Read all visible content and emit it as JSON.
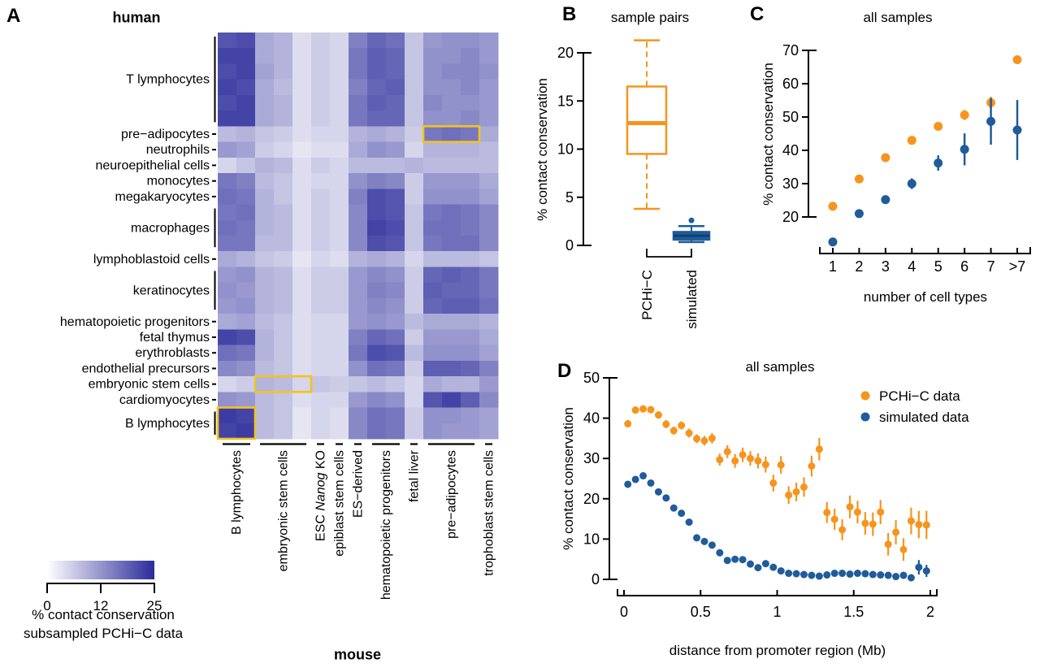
{
  "colors": {
    "orange": "#F7941E",
    "blue": "#1F5C99",
    "blue_dark": "#123F6E",
    "heat_max": "#2B2B9B",
    "highlight": "#F2C41D",
    "black": "#000000"
  },
  "chart_data": {
    "A": {
      "letter": "A",
      "type": "heatmap",
      "rows_title": "human",
      "cols_title": "mouse",
      "heat_scale_max": 25,
      "row_groups": [
        {
          "label": "T lymphocytes",
          "rows": 6
        },
        {
          "label": "pre−adipocytes",
          "rows": 1
        },
        {
          "label": "neutrophils",
          "rows": 1
        },
        {
          "label": "neuroepithelial cells",
          "rows": 1
        },
        {
          "label": "monocytes",
          "rows": 1
        },
        {
          "label": "megakaryocytes",
          "rows": 1
        },
        {
          "label": "macrophages",
          "rows": 3
        },
        {
          "label": "lymphoblastoid cells",
          "rows": 1
        },
        {
          "label": "keratinocytes",
          "rows": 3
        },
        {
          "label": "hematopoietic progenitors",
          "rows": 1
        },
        {
          "label": "fetal thymus",
          "rows": 1
        },
        {
          "label": "erythroblasts",
          "rows": 1
        },
        {
          "label": "endothelial precursors",
          "rows": 1
        },
        {
          "label": "embryonic stem cells",
          "rows": 1
        },
        {
          "label": "cardiomyocytes",
          "rows": 1
        },
        {
          "label": "B lymphocytes",
          "rows": 2
        }
      ],
      "col_groups": [
        {
          "label": "B lymphocytes",
          "cols": 2
        },
        {
          "label": "embryonic stem cells",
          "cols": 3
        },
        {
          "label": "ESC Nanog KO",
          "cols": 1,
          "italic": "Nanog"
        },
        {
          "label": "epiblast stem cells",
          "cols": 1
        },
        {
          "label": "ES−derived",
          "cols": 1
        },
        {
          "label": "hematopoietic progenitors",
          "cols": 2
        },
        {
          "label": "fetal liver",
          "cols": 1
        },
        {
          "label": "pre−adipocytes",
          "cols": 3
        },
        {
          "label": "trophoblast stem cells",
          "cols": 1
        }
      ],
      "cells": [
        [
          20,
          21,
          10,
          9,
          4,
          6,
          5,
          15,
          18,
          17,
          7,
          12,
          13,
          13,
          12
        ],
        [
          22,
          22,
          10,
          9,
          4,
          6,
          5,
          16,
          19,
          18,
          7,
          13,
          13,
          14,
          12
        ],
        [
          21,
          22,
          11,
          9,
          4,
          6,
          5,
          16,
          19,
          18,
          7,
          13,
          14,
          14,
          13
        ],
        [
          22,
          21,
          10,
          8,
          4,
          6,
          5,
          15,
          18,
          19,
          7,
          13,
          13,
          14,
          12
        ],
        [
          21,
          22,
          10,
          9,
          4,
          6,
          5,
          16,
          19,
          18,
          7,
          14,
          13,
          13,
          12
        ],
        [
          22,
          22,
          10,
          9,
          4,
          6,
          5,
          16,
          18,
          18,
          7,
          13,
          13,
          14,
          12
        ],
        [
          8,
          9,
          7,
          6,
          4,
          5,
          5,
          9,
          10,
          9,
          6,
          16,
          17,
          16,
          10
        ],
        [
          12,
          11,
          6,
          5,
          3,
          4,
          4,
          10,
          13,
          12,
          5,
          9,
          9,
          9,
          8
        ],
        [
          5,
          7,
          9,
          8,
          4,
          6,
          5,
          8,
          8,
          8,
          9,
          8,
          8,
          8,
          8
        ],
        [
          16,
          15,
          8,
          7,
          4,
          5,
          5,
          13,
          15,
          14,
          6,
          12,
          12,
          12,
          10
        ],
        [
          17,
          16,
          9,
          7,
          4,
          6,
          5,
          15,
          21,
          20,
          6,
          13,
          13,
          13,
          11
        ],
        [
          16,
          17,
          9,
          8,
          4,
          6,
          5,
          14,
          21,
          20,
          7,
          16,
          17,
          16,
          14
        ],
        [
          17,
          16,
          9,
          8,
          4,
          6,
          5,
          14,
          22,
          21,
          7,
          17,
          17,
          16,
          14
        ],
        [
          16,
          16,
          8,
          8,
          4,
          6,
          5,
          14,
          21,
          20,
          7,
          16,
          17,
          17,
          14
        ],
        [
          10,
          9,
          7,
          6,
          3,
          5,
          4,
          9,
          10,
          9,
          5,
          8,
          8,
          8,
          7
        ],
        [
          12,
          13,
          9,
          8,
          4,
          6,
          6,
          12,
          14,
          13,
          6,
          18,
          19,
          18,
          16
        ],
        [
          13,
          12,
          9,
          8,
          4,
          6,
          6,
          12,
          15,
          14,
          6,
          19,
          18,
          18,
          16
        ],
        [
          12,
          13,
          9,
          8,
          4,
          6,
          6,
          12,
          14,
          13,
          6,
          18,
          19,
          19,
          17
        ],
        [
          10,
          11,
          8,
          7,
          4,
          5,
          5,
          12,
          13,
          12,
          8,
          10,
          10,
          10,
          9
        ],
        [
          22,
          21,
          9,
          7,
          4,
          5,
          5,
          15,
          18,
          17,
          6,
          12,
          12,
          12,
          10
        ],
        [
          17,
          16,
          9,
          7,
          4,
          5,
          5,
          16,
          21,
          20,
          8,
          13,
          13,
          13,
          11
        ],
        [
          14,
          13,
          8,
          7,
          4,
          5,
          5,
          13,
          17,
          16,
          6,
          19,
          19,
          18,
          15
        ],
        [
          5,
          6,
          9,
          8,
          5,
          7,
          6,
          7,
          8,
          7,
          5,
          10,
          9,
          9,
          12
        ],
        [
          13,
          12,
          8,
          7,
          4,
          5,
          5,
          12,
          14,
          13,
          5,
          20,
          22,
          19,
          14
        ],
        [
          23,
          22,
          8,
          7,
          3,
          5,
          4,
          14,
          17,
          16,
          6,
          13,
          13,
          12,
          11
        ],
        [
          22,
          23,
          8,
          7,
          3,
          5,
          4,
          14,
          17,
          16,
          6,
          13,
          12,
          12,
          11
        ]
      ],
      "highlights": [
        {
          "row": 7,
          "rowspan": 1,
          "col": 12,
          "colspan": 3
        },
        {
          "row": 23,
          "rowspan": 1,
          "col": 3,
          "colspan": 3
        },
        {
          "row": 25,
          "rowspan": 2,
          "col": 1,
          "colspan": 2
        }
      ],
      "colorbar": {
        "ticks": [
          "0",
          "12",
          "25"
        ],
        "caption1": "% contact conservation",
        "caption2": "subsampled PCHi−C data"
      }
    },
    "B": {
      "letter": "B",
      "type": "boxplot",
      "title": "sample pairs",
      "ylabel": "% contact conservation",
      "yticks": [
        0,
        5,
        10,
        15,
        20
      ],
      "boxes": [
        {
          "category": "PCHi−C",
          "color": "orange",
          "style": "open",
          "median": 12.7,
          "q1": 9.5,
          "q3": 16.5,
          "whisker_low": 3.8,
          "whisker_high": 21.3,
          "outliers": []
        },
        {
          "category": "simulated",
          "color": "blue",
          "style": "filled",
          "median": 1.0,
          "q1": 0.6,
          "q3": 1.4,
          "whisker_low": 0.35,
          "whisker_high": 2.0,
          "outliers": [
            2.6
          ]
        }
      ]
    },
    "C": {
      "letter": "C",
      "type": "scatter",
      "title": "all samples",
      "ylabel": "% contact conservation",
      "xlabel": "number of cell types",
      "yticks": [
        20,
        30,
        40,
        50,
        60,
        70
      ],
      "xticklabels": [
        "1",
        "2",
        "3",
        "4",
        "5",
        "6",
        "7",
        ">7"
      ],
      "series": [
        {
          "name": "PCHi-C",
          "color": "orange",
          "values": [
            23.2,
            31.4,
            37.8,
            43.0,
            47.2,
            50.6,
            54.3,
            67.2
          ],
          "errors": [
            0.5,
            0.5,
            0.5,
            0.7,
            0.9,
            1.5,
            1.8,
            0.7
          ]
        },
        {
          "name": "simulated",
          "color": "blue",
          "values": [
            12.5,
            21.0,
            25.2,
            30.0,
            36.2,
            40.3,
            48.7,
            46.1
          ],
          "errors": [
            0.5,
            0.5,
            0.6,
            1.6,
            2.3,
            4.8,
            7.0,
            9.0
          ]
        }
      ]
    },
    "D": {
      "letter": "D",
      "type": "scatter",
      "title": "all samples",
      "ylabel": "% contact conservation",
      "xlabel": "distance from promoter region (Mb)",
      "yticks": [
        0,
        10,
        20,
        30,
        40,
        50
      ],
      "xticks": [
        "0",
        "0.5",
        "1",
        "1.5",
        "2"
      ],
      "xtick_values": [
        0,
        0.5,
        1,
        1.5,
        2
      ],
      "x_start": 0.025,
      "x_step": 0.05,
      "legend": [
        "PCHi−C data",
        "simulated data"
      ],
      "series": [
        {
          "name": "PCHi−C data",
          "color": "orange",
          "values": [
            38.6,
            42.0,
            42.3,
            42.1,
            40.8,
            38.5,
            36.9,
            38.2,
            36.3,
            34.9,
            34.4,
            35.0,
            29.7,
            31.7,
            29.4,
            30.9,
            30.0,
            29.4,
            28.5,
            23.9,
            28.4,
            20.9,
            21.7,
            22.9,
            28.1,
            32.3,
            16.6,
            14.9,
            12.3,
            18.0,
            16.7,
            13.9,
            13.7,
            16.7,
            8.7,
            11.7,
            7.4,
            14.5,
            13.6,
            13.5
          ],
          "errors": [
            0.9,
            0.9,
            0.9,
            0.9,
            0.9,
            1.0,
            1.0,
            1.0,
            1.1,
            1.1,
            1.2,
            1.3,
            1.5,
            1.6,
            1.7,
            1.8,
            1.8,
            1.9,
            2.0,
            2.1,
            2.2,
            2.2,
            2.3,
            2.4,
            2.6,
            2.8,
            2.6,
            2.6,
            2.6,
            2.8,
            2.8,
            2.8,
            2.9,
            3.0,
            2.8,
            3.0,
            2.8,
            3.3,
            3.4,
            3.5
          ]
        },
        {
          "name": "simulated data",
          "color": "blue",
          "values": [
            23.6,
            24.8,
            25.7,
            23.9,
            21.7,
            20.2,
            17.7,
            16.4,
            14.2,
            10.3,
            9.4,
            8.5,
            6.6,
            4.7,
            5.0,
            4.9,
            3.8,
            2.9,
            3.9,
            3.0,
            2.1,
            1.5,
            1.4,
            1.2,
            1.0,
            0.8,
            1.1,
            1.5,
            1.5,
            1.3,
            1.5,
            1.4,
            1.2,
            1.1,
            1.0,
            0.7,
            1.0,
            0.4,
            3.0,
            2.1
          ],
          "errors": [
            0.5,
            0.5,
            0.5,
            0.5,
            0.5,
            0.5,
            0.5,
            0.5,
            0.5,
            0.5,
            0.5,
            0.5,
            0.5,
            0.5,
            0.5,
            0.5,
            0.5,
            0.5,
            0.6,
            0.6,
            0.5,
            0.4,
            0.4,
            0.4,
            0.4,
            0.4,
            0.5,
            0.6,
            0.6,
            0.6,
            0.8,
            0.6,
            0.6,
            0.6,
            0.6,
            0.5,
            0.8,
            0.5,
            1.8,
            1.5
          ]
        }
      ]
    }
  }
}
